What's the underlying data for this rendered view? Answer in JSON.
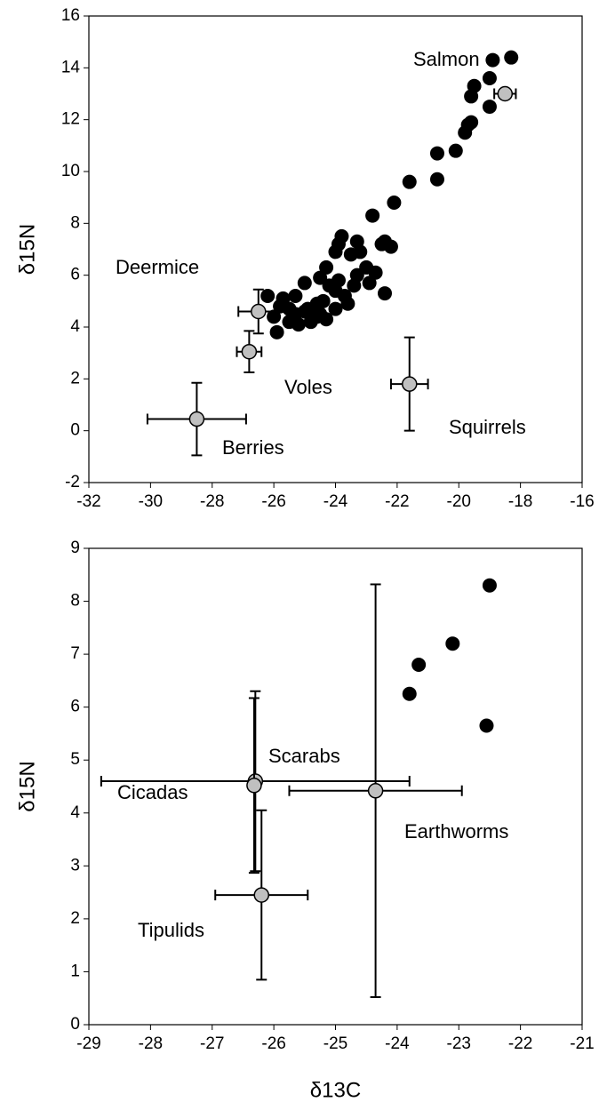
{
  "chart_data": [
    {
      "type": "scatter",
      "xlim": [
        -32,
        -16
      ],
      "xticks": [
        -32,
        -30,
        -28,
        -26,
        -24,
        -22,
        -20,
        -18,
        -16
      ],
      "ylim": [
        -2,
        16
      ],
      "yticks": [
        -2,
        0,
        2,
        4,
        6,
        8,
        10,
        12,
        14,
        16
      ],
      "ylabel": "δ15N",
      "series": [
        {
          "color": "#000000",
          "x": [
            -18.3,
            -18.9,
            -19.0,
            -19.5,
            -19.6,
            -19.0,
            -19.6,
            -19.7,
            -19.8,
            -20.1,
            -20.7,
            -20.7,
            -21.6,
            -22.1,
            -22.8,
            -22.4,
            -22.2,
            -22.5,
            -23.3,
            -23.8,
            -23.9,
            -23.2,
            -23.5,
            -24.0,
            -24.3,
            -23.0,
            -22.7,
            -23.3,
            -22.9,
            -22.4,
            -23.9,
            -24.5,
            -25.0,
            -24.2,
            -24.0,
            -23.7,
            -23.4,
            -24.4,
            -24.6,
            -25.3,
            -25.7,
            -26.2,
            -25.5,
            -25.0,
            -24.6,
            -24.3,
            -24.8,
            -25.3,
            -25.8,
            -26.0,
            -25.2,
            -24.5,
            -25.5,
            -25.9,
            -24.9,
            -24.0,
            -23.6
          ],
          "values": [
            14.4,
            14.3,
            13.6,
            13.3,
            12.9,
            12.5,
            11.9,
            11.8,
            11.5,
            10.8,
            10.7,
            9.7,
            9.6,
            8.8,
            8.3,
            7.3,
            7.1,
            7.2,
            7.3,
            7.5,
            7.2,
            6.9,
            6.8,
            6.9,
            6.3,
            6.3,
            6.1,
            6.0,
            5.7,
            5.3,
            5.8,
            5.9,
            5.7,
            5.6,
            5.4,
            5.2,
            5.6,
            5.0,
            4.9,
            5.2,
            5.1,
            5.2,
            4.7,
            4.6,
            4.4,
            4.3,
            4.2,
            4.5,
            4.8,
            4.4,
            4.1,
            4.5,
            4.2,
            3.8,
            4.7,
            4.7,
            4.9
          ]
        },
        {
          "color": "#c0c0c0",
          "labels": [
            "Salmon",
            "Deermice",
            "Voles",
            "Berries",
            "Squirrels"
          ],
          "x": [
            -18.5,
            -26.5,
            -26.8,
            -28.5,
            -21.6
          ],
          "values": [
            13.0,
            4.6,
            3.05,
            0.45,
            1.8
          ],
          "xerr": [
            0.35,
            0.65,
            0.4,
            1.6,
            0.6
          ],
          "yerr": [
            0.15,
            0.85,
            0.8,
            1.4,
            1.8
          ]
        }
      ]
    },
    {
      "type": "scatter",
      "xlim": [
        -29,
        -21
      ],
      "xticks": [
        -29,
        -28,
        -27,
        -26,
        -25,
        -24,
        -23,
        -22,
        -21
      ],
      "ylim": [
        0,
        9
      ],
      "yticks": [
        0,
        1,
        2,
        3,
        4,
        5,
        6,
        7,
        8,
        9
      ],
      "ylabel": "δ15N",
      "xlabel": "δ13C",
      "series": [
        {
          "color": "#000000",
          "x": [
            -22.5,
            -23.1,
            -23.65,
            -23.8,
            -22.55
          ],
          "values": [
            8.3,
            7.2,
            6.8,
            6.25,
            5.65
          ]
        },
        {
          "color": "#c0c0c0",
          "labels": [
            "Scarabs",
            "Cicadas",
            "Earthworms",
            "Tipulids"
          ],
          "x": [
            -26.3,
            -26.32,
            -24.35,
            -26.2
          ],
          "values": [
            4.6,
            4.52,
            4.42,
            2.45
          ],
          "xerr": [
            2.5,
            0.05,
            1.4,
            0.75
          ],
          "yerr": [
            1.7,
            1.65,
            3.9,
            1.6
          ]
        }
      ]
    }
  ]
}
